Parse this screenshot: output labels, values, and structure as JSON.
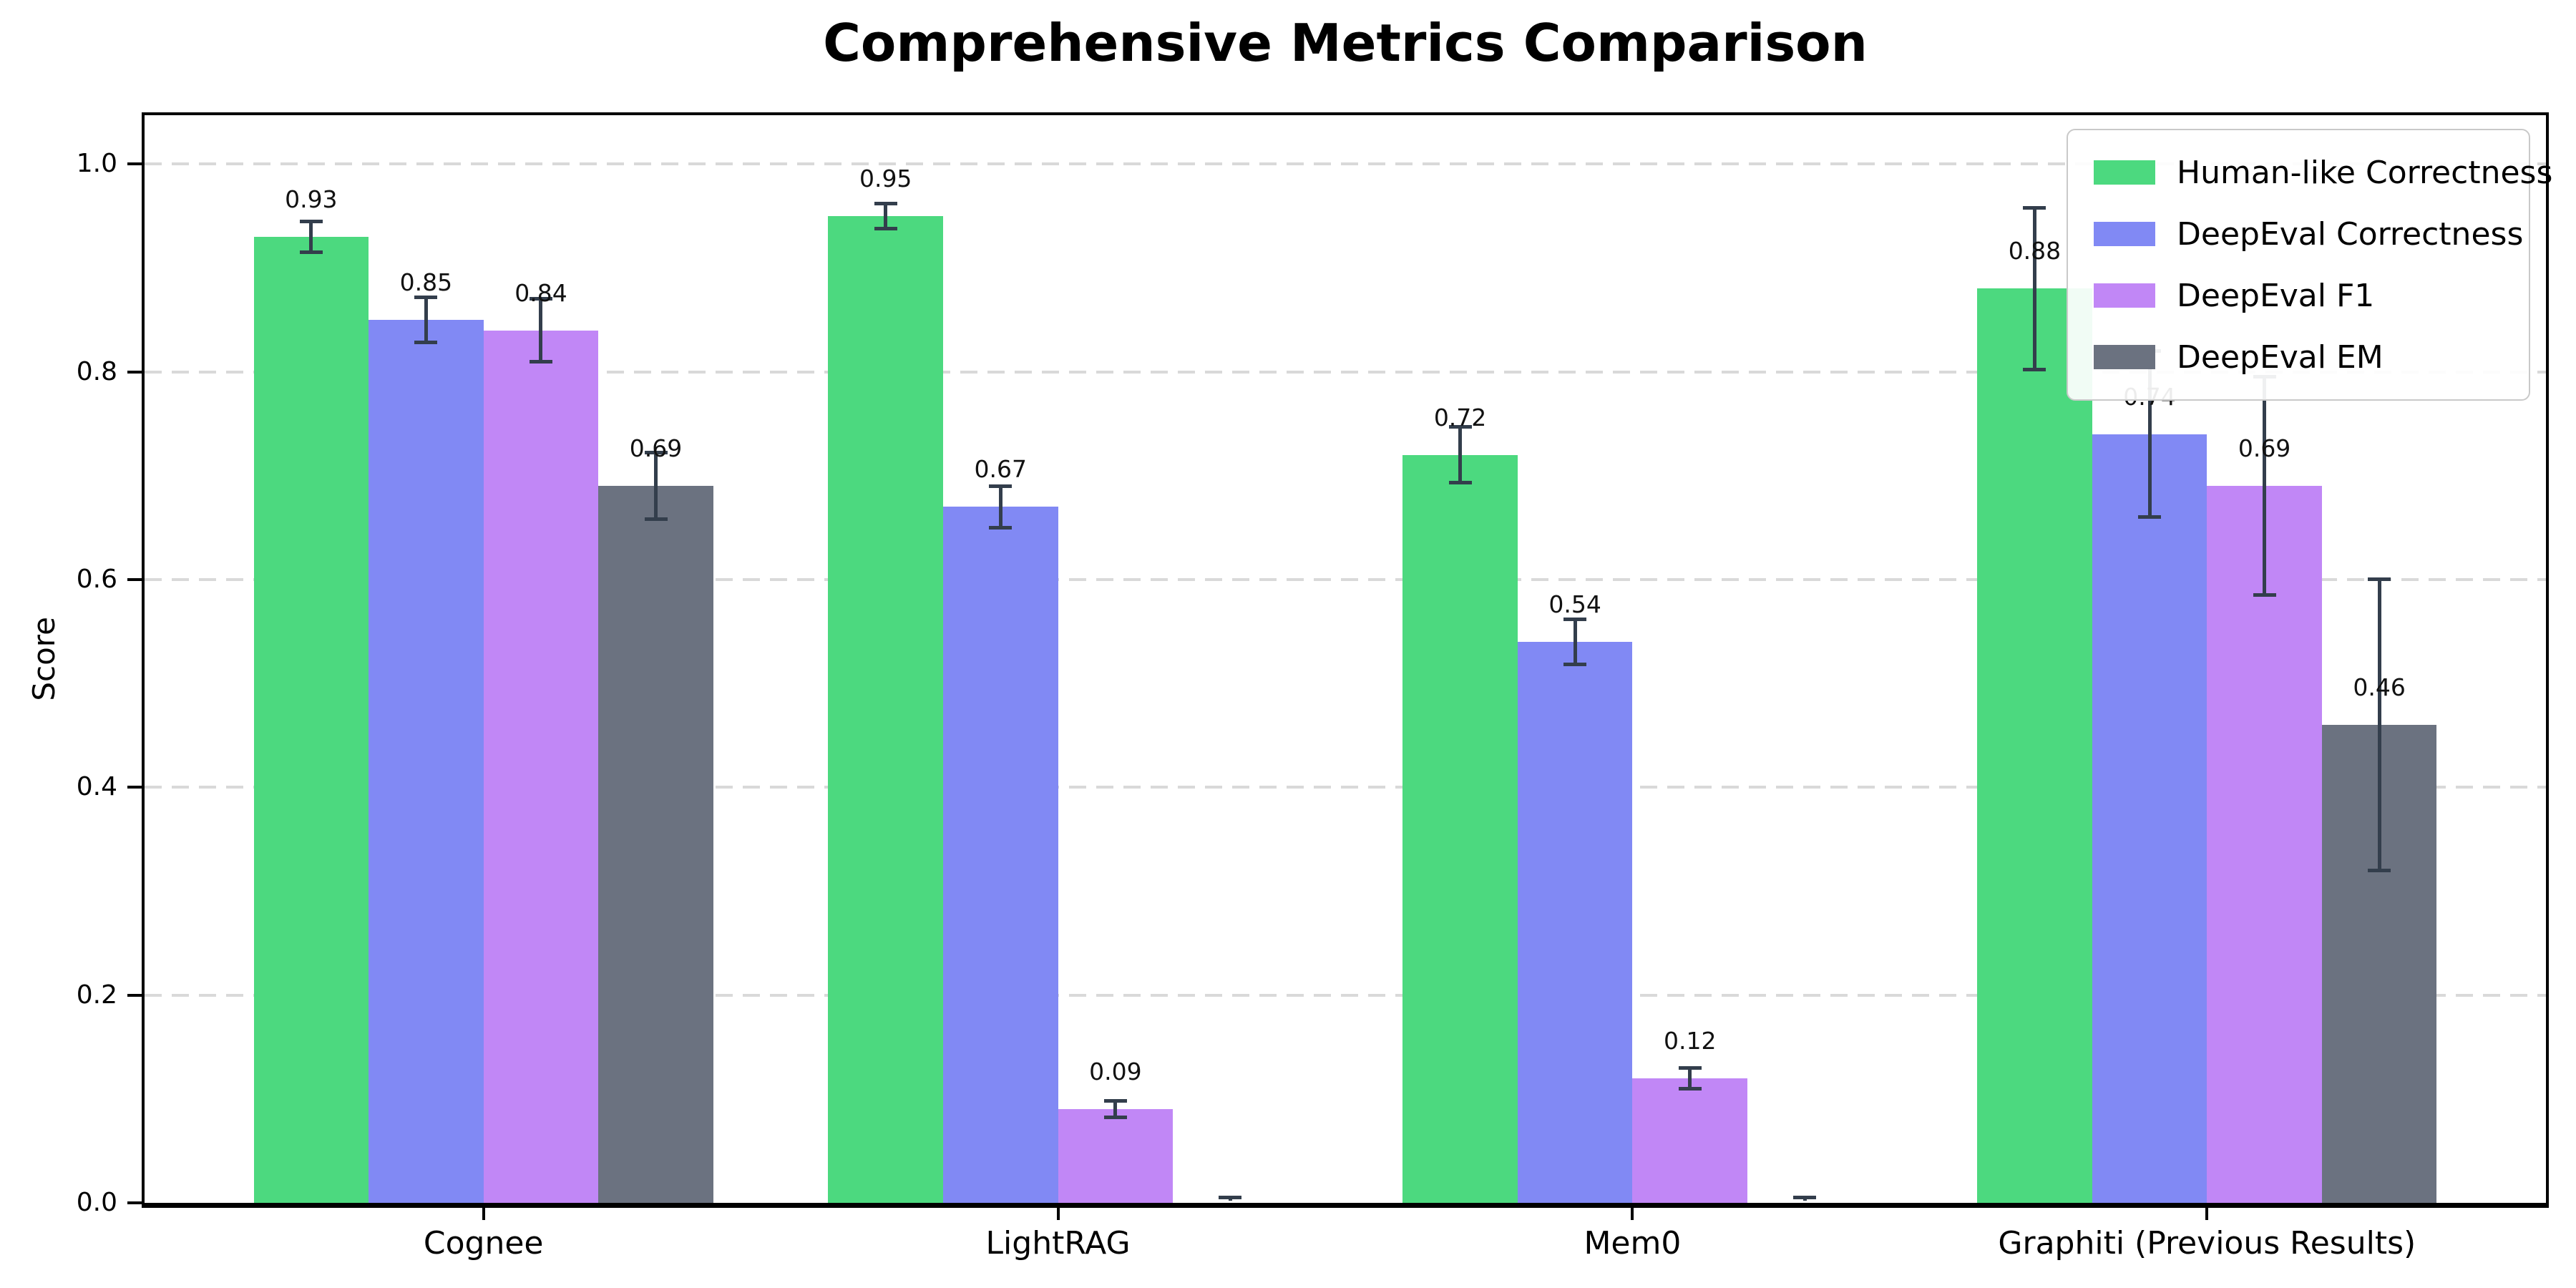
{
  "figure": {
    "background": "#ffffff"
  },
  "chart_data": {
    "type": "bar",
    "title": "Comprehensive Metrics Comparison",
    "ylabel": "Score",
    "xlabel": "",
    "categories": [
      "Cognee",
      "LightRAG",
      "Mem0",
      "Graphiti (Previous Results)"
    ],
    "series": [
      {
        "name": "Human-like Correctness",
        "color": "#4cd97f",
        "values": [
          0.93,
          0.95,
          0.72,
          0.88
        ],
        "errors": [
          0.015,
          0.012,
          0.027,
          0.078
        ],
        "bar_labels": [
          "0.93",
          "0.95",
          "0.72",
          "0.88"
        ]
      },
      {
        "name": "DeepEval Correctness",
        "color": "#8189f4",
        "values": [
          0.85,
          0.67,
          0.54,
          0.74
        ],
        "errors": [
          0.022,
          0.02,
          0.022,
          0.08
        ],
        "bar_labels": [
          "0.85",
          "0.67",
          "0.54",
          "0.74"
        ]
      },
      {
        "name": "DeepEval F1",
        "color": "#c187f6",
        "values": [
          0.84,
          0.09,
          0.12,
          0.69
        ],
        "errors": [
          0.03,
          0.008,
          0.01,
          0.105
        ],
        "bar_labels": [
          "0.84",
          "0.09",
          "0.12",
          "0.69"
        ]
      },
      {
        "name": "DeepEval EM",
        "color": "#6b7280",
        "values": [
          0.69,
          0.0,
          0.0,
          0.46
        ],
        "errors": [
          0.032,
          0.005,
          0.005,
          0.14
        ],
        "bar_labels": [
          "0.69",
          "",
          "",
          "0.46"
        ]
      }
    ],
    "yticks": [
      "0.0",
      "0.2",
      "0.4",
      "0.6",
      "0.8",
      "1.0"
    ],
    "ylim": [
      0,
      1.047
    ],
    "grid": {
      "axis": "y",
      "style": "dashed",
      "color": "#d9d9d9"
    },
    "error_bar_color": "#333e4c",
    "axis_color": "#000000",
    "legend": {
      "position": "upper right",
      "entries": [
        "Human-like Correctness",
        "DeepEval Correctness",
        "DeepEval F1",
        "DeepEval EM"
      ]
    }
  }
}
